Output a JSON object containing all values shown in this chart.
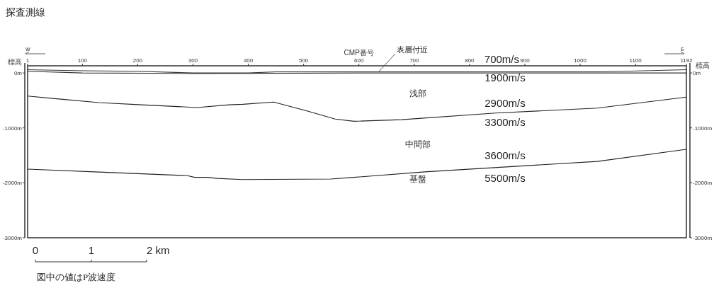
{
  "chart_data": {
    "type": "line",
    "title": "探査測線",
    "xlabel": "CMP番号",
    "ylabel": "標高",
    "y2label": "標高",
    "xlim": [
      1,
      1192
    ],
    "xticks": [
      1,
      100,
      200,
      300,
      400,
      500,
      600,
      700,
      800,
      900,
      1000,
      1100,
      1192
    ],
    "ylim": [
      -3000,
      130
    ],
    "yticks": [
      {
        "value": 0,
        "label": "0m"
      },
      {
        "value": -1000,
        "label": "-1000m"
      },
      {
        "value": -2000,
        "label": "-2000m"
      },
      {
        "value": -3000,
        "label": "-3000m"
      }
    ],
    "y2lim": [
      -3000,
      130
    ],
    "y2ticks": [
      {
        "value": 0,
        "label": "0m"
      },
      {
        "value": -1000,
        "label": "-1000m"
      },
      {
        "value": -2000,
        "label": "-2000m"
      },
      {
        "value": -3000,
        "label": "-3000m"
      }
    ],
    "grid": false,
    "marker": "none",
    "line_style": "solid",
    "series": [
      {
        "color": "#333333",
        "x": [
          1,
          100,
          200,
          300,
          400,
          450,
          600,
          800,
          1000,
          1040,
          1192
        ],
        "values": [
          60,
          40,
          30,
          0,
          0,
          20,
          20,
          20,
          20,
          20,
          60
        ]
      },
      {
        "color": "#333333",
        "x": [
          1,
          100,
          300,
          600,
          1000,
          1192
        ],
        "values": [
          30,
          0,
          -10,
          0,
          0,
          0
        ]
      },
      {
        "color": "#222222",
        "x": [
          1,
          54,
          130,
          207,
          307,
          365,
          390,
          446,
          506,
          557,
          591,
          677,
          847,
          1031,
          1192
        ],
        "values": [
          -420,
          -470,
          -540,
          -580,
          -630,
          -580,
          -570,
          -530,
          -690,
          -840,
          -880,
          -850,
          -730,
          -640,
          -440
        ]
      },
      {
        "color": "#222222",
        "x": [
          1,
          122,
          290,
          303,
          327,
          344,
          390,
          549,
          591,
          719,
          1031,
          1192
        ],
        "values": [
          -1750,
          -1800,
          -1870,
          -1900,
          -1900,
          -1920,
          -1940,
          -1930,
          -1900,
          -1800,
          -1610,
          -1390
        ]
      }
    ],
    "annotations": [
      "W",
      "E",
      "表層付近",
      "0",
      "1",
      "2 km",
      "図中の値はP波速度",
      "700m/s",
      "1900m/s",
      "浅部",
      "2900m/s",
      "3300m/s",
      "中間部",
      "3600m/s",
      "基盤",
      "5500m/s"
    ]
  }
}
